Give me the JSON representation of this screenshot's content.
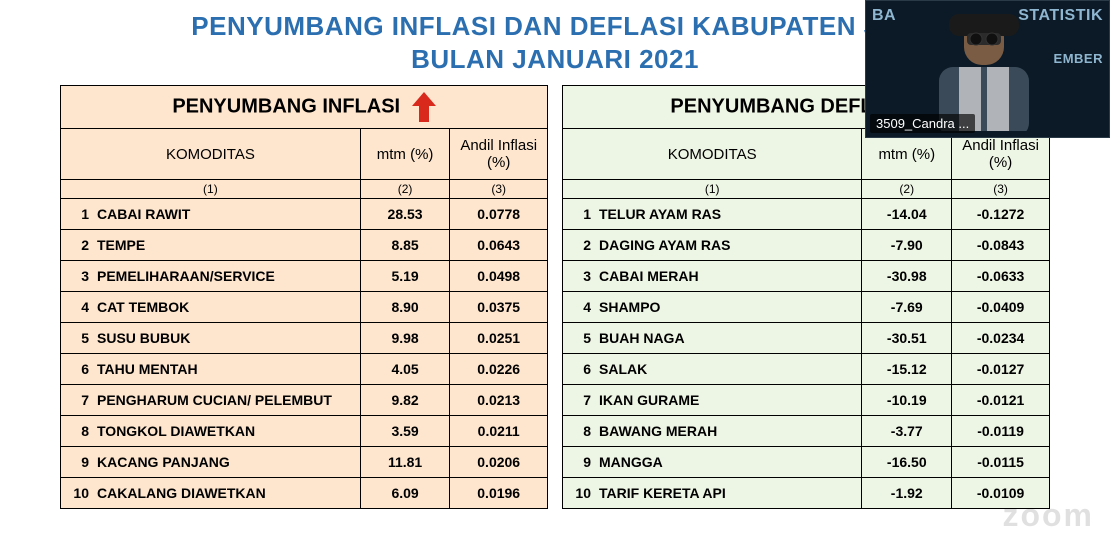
{
  "title": {
    "line1": "PENYUMBANG INFLASI DAN DEFLASI KABUPATEN JEM",
    "line2": "BULAN JANUARI 2021",
    "color": "#2c6fb0",
    "font_size": 26
  },
  "left_table": {
    "header": "PENYUMBANG INFLASI",
    "bg_color": "#fde5ce",
    "arrow_color": "#d9291c",
    "arrow_direction": "up",
    "sub_headers": {
      "komoditas": "KOMODITAS",
      "mtm": "mtm (%)",
      "andil": "Andil Inflasi (%)"
    },
    "col_numbers": [
      "(1)",
      "(2)",
      "(3)"
    ],
    "rows": [
      {
        "n": "1",
        "name": "CABAI RAWIT",
        "mtm": "28.53",
        "andil": "0.0778"
      },
      {
        "n": "2",
        "name": "TEMPE",
        "mtm": "8.85",
        "andil": "0.0643"
      },
      {
        "n": "3",
        "name": "PEMELIHARAAN/SERVICE",
        "mtm": "5.19",
        "andil": "0.0498"
      },
      {
        "n": "4",
        "name": "CAT TEMBOK",
        "mtm": "8.90",
        "andil": "0.0375"
      },
      {
        "n": "5",
        "name": "SUSU BUBUK",
        "mtm": "9.98",
        "andil": "0.0251"
      },
      {
        "n": "6",
        "name": "TAHU MENTAH",
        "mtm": "4.05",
        "andil": "0.0226"
      },
      {
        "n": "7",
        "name": "PENGHARUM CUCIAN/ PELEMBUT",
        "mtm": "9.82",
        "andil": "0.0213"
      },
      {
        "n": "8",
        "name": "TONGKOL DIAWETKAN",
        "mtm": "3.59",
        "andil": "0.0211"
      },
      {
        "n": "9",
        "name": "KACANG PANJANG",
        "mtm": "11.81",
        "andil": "0.0206"
      },
      {
        "n": "10",
        "name": "CAKALANG DIAWETKAN",
        "mtm": "6.09",
        "andil": "0.0196"
      }
    ]
  },
  "right_table": {
    "header": "PENYUMBANG DEFLASI",
    "bg_color": "#edf5e4",
    "arrow_color": "#8bbf3f",
    "arrow_direction": "down",
    "sub_headers": {
      "komoditas": "KOMODITAS",
      "mtm": "mtm (%)",
      "andil": "Andil Inflasi (%)"
    },
    "col_numbers": [
      "(1)",
      "(2)",
      "(3)"
    ],
    "rows": [
      {
        "n": "1",
        "name": "TELUR AYAM RAS",
        "mtm": "-14.04",
        "andil": "-0.1272"
      },
      {
        "n": "2",
        "name": "DAGING AYAM RAS",
        "mtm": "-7.90",
        "andil": "-0.0843"
      },
      {
        "n": "3",
        "name": "CABAI MERAH",
        "mtm": "-30.98",
        "andil": "-0.0633"
      },
      {
        "n": "4",
        "name": "SHAMPO",
        "mtm": "-7.69",
        "andil": "-0.0409"
      },
      {
        "n": "5",
        "name": "BUAH NAGA",
        "mtm": "-30.51",
        "andil": "-0.0234"
      },
      {
        "n": "6",
        "name": "SALAK",
        "mtm": "-15.12",
        "andil": "-0.0127"
      },
      {
        "n": "7",
        "name": "IKAN GURAME",
        "mtm": "-10.19",
        "andil": "-0.0121"
      },
      {
        "n": "8",
        "name": "BAWANG MERAH",
        "mtm": "-3.77",
        "andil": "-0.0119"
      },
      {
        "n": "9",
        "name": "MANGGA",
        "mtm": "-16.50",
        "andil": "-0.0115"
      },
      {
        "n": "10",
        "name": "TARIF KERETA API",
        "mtm": "-1.92",
        "andil": "-0.0109"
      }
    ]
  },
  "video_overlay": {
    "name_tag": "3509_Candra ...",
    "bg_text_left": "BA",
    "bg_text_right": "STATISTIK",
    "bg_text_sub": "EMBER",
    "bg_color": "#0b1a26",
    "text_color": "#8fb6d0"
  },
  "watermark": "zoom"
}
